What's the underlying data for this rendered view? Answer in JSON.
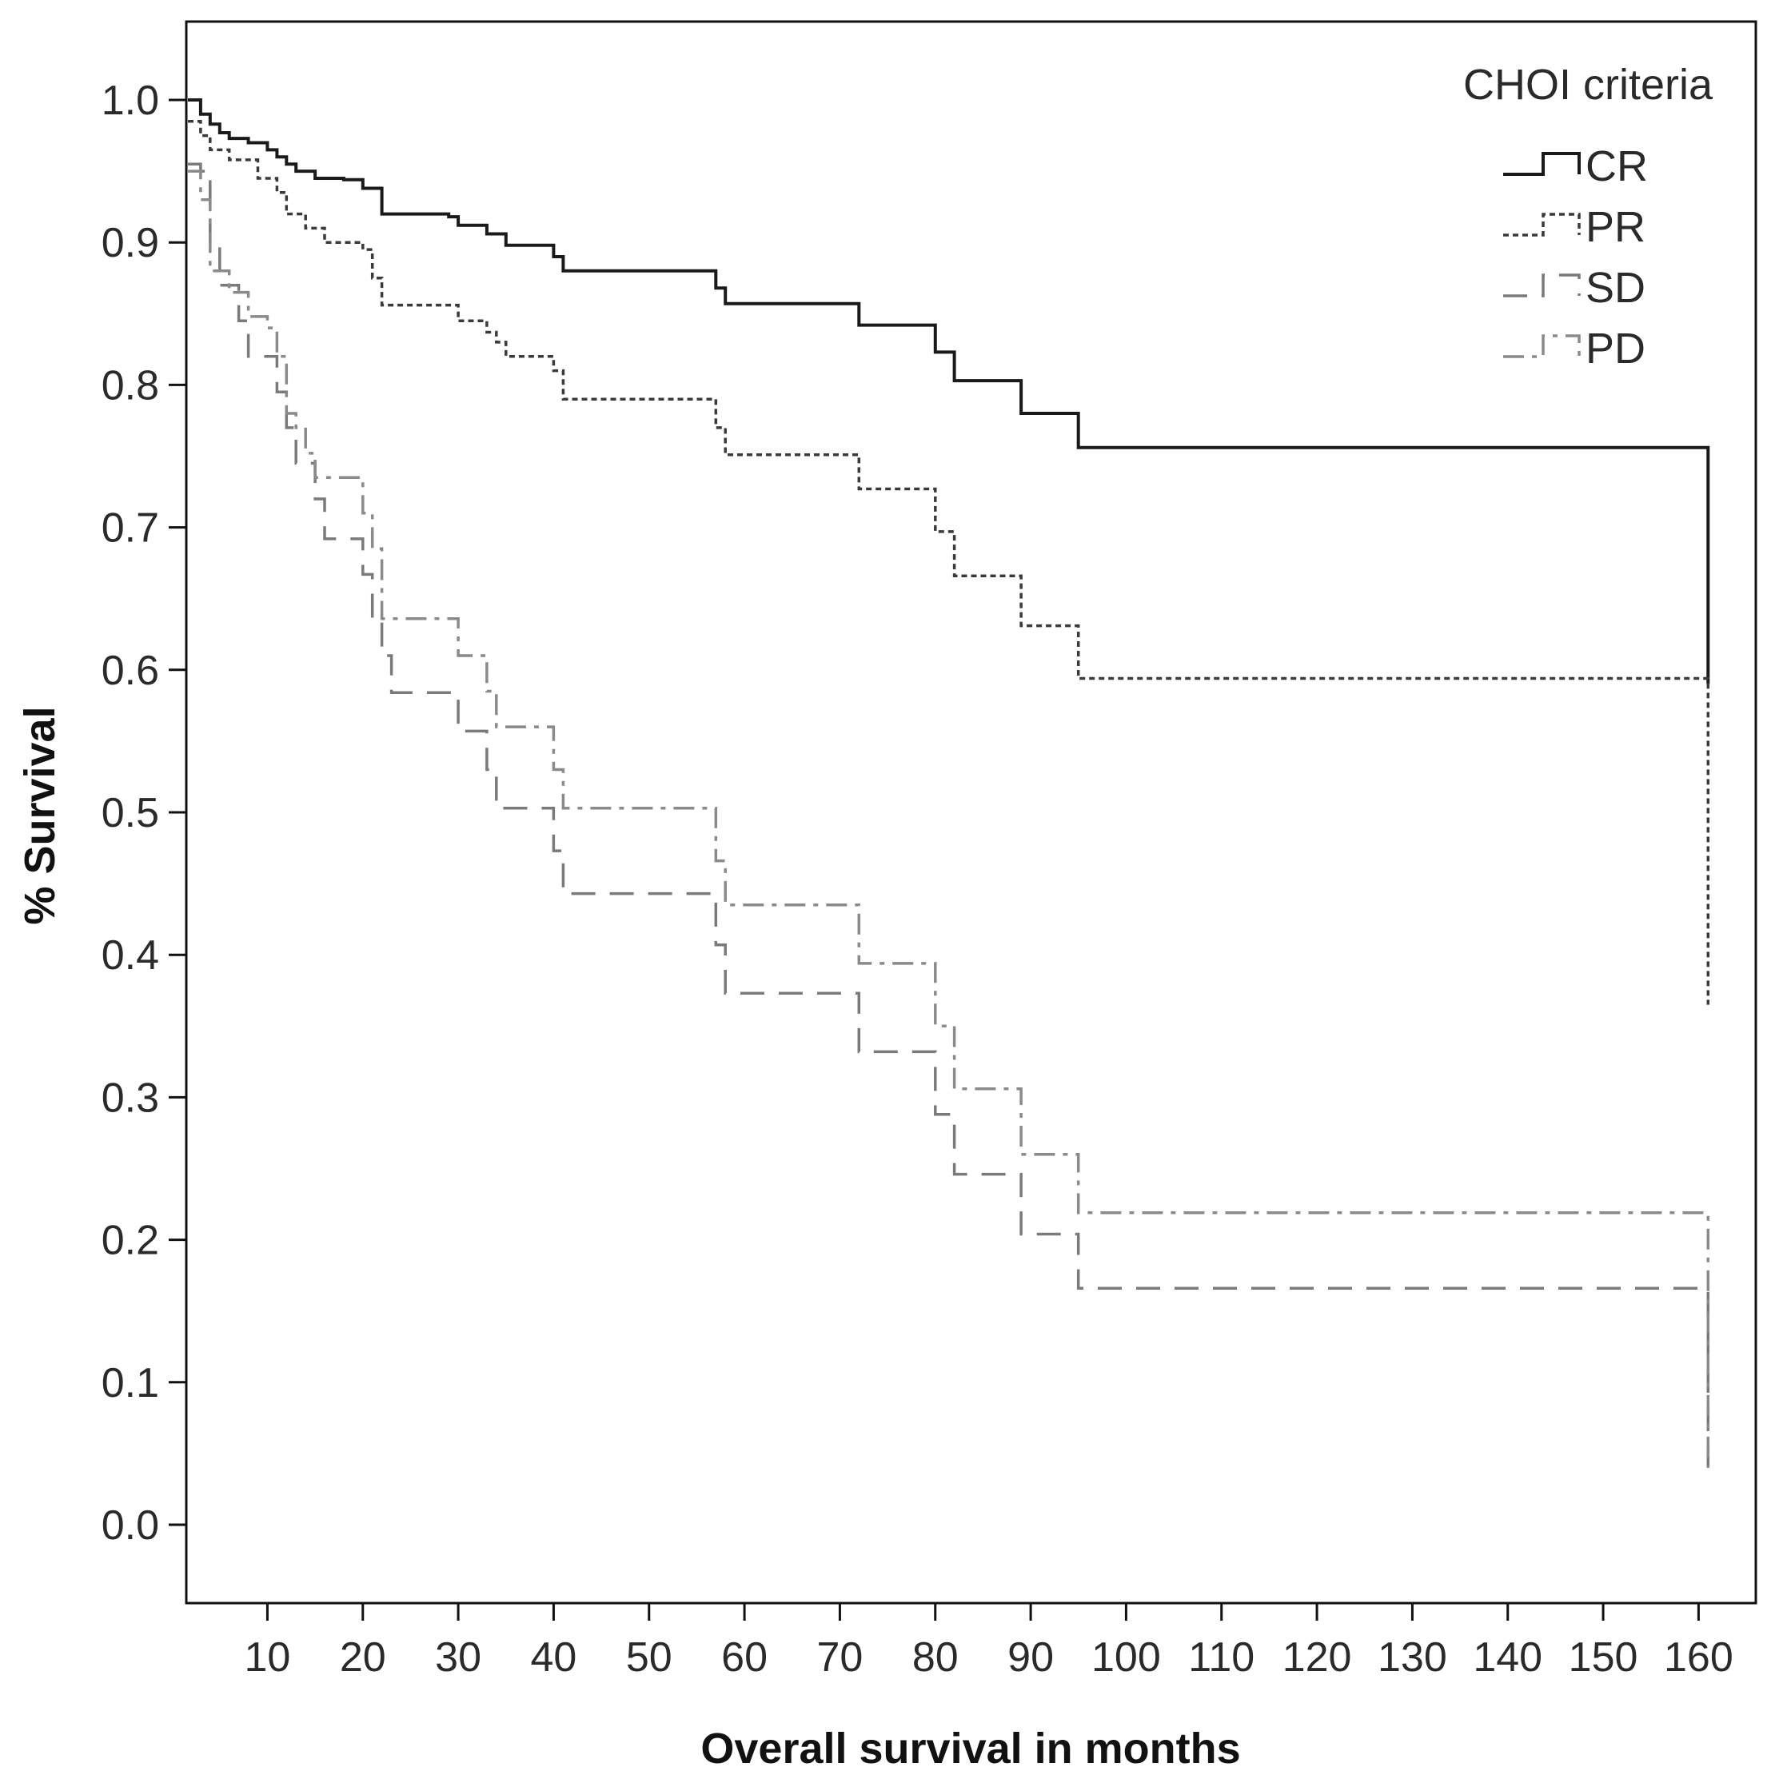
{
  "chart_data": {
    "type": "line",
    "subtype": "kaplan-meier-step",
    "xlabel": "Overall survival in months",
    "ylabel": "% Survival",
    "xlim": [
      1.5,
      166
    ],
    "ylim": [
      -0.055,
      1.055
    ],
    "x_ticks": [
      10,
      20,
      30,
      40,
      50,
      60,
      70,
      80,
      90,
      100,
      110,
      120,
      130,
      140,
      150,
      160
    ],
    "y_ticks": [
      0.0,
      0.1,
      0.2,
      0.3,
      0.4,
      0.5,
      0.6,
      0.7,
      0.8,
      0.9,
      1.0
    ],
    "y_tick_labels": [
      "0.0",
      "0.1",
      "0.2",
      "0.3",
      "0.4",
      "0.5",
      "0.6",
      "0.7",
      "0.8",
      "0.9",
      "1.0"
    ],
    "legend": {
      "title": "CHOI criteria",
      "position": "top-right"
    },
    "series": [
      {
        "name": "CR",
        "style": "solid",
        "color": "#1a1a1a",
        "points": [
          [
            0,
            1.0
          ],
          [
            3,
            0.99
          ],
          [
            4,
            0.983
          ],
          [
            5,
            0.977
          ],
          [
            6,
            0.973
          ],
          [
            8,
            0.97
          ],
          [
            10,
            0.965
          ],
          [
            11,
            0.96
          ],
          [
            12,
            0.955
          ],
          [
            13,
            0.95
          ],
          [
            15,
            0.945
          ],
          [
            18,
            0.944
          ],
          [
            20,
            0.938
          ],
          [
            22,
            0.92
          ],
          [
            25,
            0.92
          ],
          [
            29,
            0.918
          ],
          [
            30,
            0.912
          ],
          [
            33,
            0.906
          ],
          [
            35,
            0.898
          ],
          [
            38,
            0.898
          ],
          [
            40,
            0.89
          ],
          [
            41,
            0.88
          ],
          [
            56,
            0.88
          ],
          [
            57,
            0.868
          ],
          [
            58,
            0.857
          ],
          [
            71,
            0.857
          ],
          [
            72,
            0.842
          ],
          [
            79,
            0.842
          ],
          [
            80,
            0.823
          ],
          [
            82,
            0.803
          ],
          [
            88,
            0.803
          ],
          [
            89,
            0.78
          ],
          [
            94,
            0.78
          ],
          [
            95,
            0.756
          ],
          [
            161,
            0.756
          ],
          [
            161,
            0.59
          ]
        ]
      },
      {
        "name": "PR",
        "style": "dotted",
        "color": "#3a3a3a",
        "points": [
          [
            0,
            0.985
          ],
          [
            3,
            0.975
          ],
          [
            4,
            0.965
          ],
          [
            6,
            0.958
          ],
          [
            9,
            0.945
          ],
          [
            11,
            0.935
          ],
          [
            12,
            0.92
          ],
          [
            14,
            0.91
          ],
          [
            16,
            0.9
          ],
          [
            20,
            0.895
          ],
          [
            21,
            0.875
          ],
          [
            22,
            0.856
          ],
          [
            29,
            0.856
          ],
          [
            30,
            0.845
          ],
          [
            33,
            0.837
          ],
          [
            34,
            0.83
          ],
          [
            35,
            0.82
          ],
          [
            39,
            0.82
          ],
          [
            40,
            0.81
          ],
          [
            41,
            0.79
          ],
          [
            56,
            0.79
          ],
          [
            57,
            0.77
          ],
          [
            58,
            0.751
          ],
          [
            71,
            0.751
          ],
          [
            72,
            0.727
          ],
          [
            79,
            0.727
          ],
          [
            80,
            0.697
          ],
          [
            82,
            0.666
          ],
          [
            88,
            0.666
          ],
          [
            89,
            0.631
          ],
          [
            94,
            0.631
          ],
          [
            95,
            0.594
          ],
          [
            161,
            0.594
          ],
          [
            161,
            0.365
          ]
        ]
      },
      {
        "name": "SD",
        "style": "dashed",
        "color": "#7a7a7a",
        "points": [
          [
            0,
            0.955
          ],
          [
            3,
            0.95
          ],
          [
            4,
            0.9
          ],
          [
            5,
            0.87
          ],
          [
            7,
            0.845
          ],
          [
            8,
            0.82
          ],
          [
            10,
            0.82
          ],
          [
            11,
            0.795
          ],
          [
            12,
            0.77
          ],
          [
            13,
            0.745
          ],
          [
            15,
            0.72
          ],
          [
            16,
            0.692
          ],
          [
            19,
            0.692
          ],
          [
            20,
            0.667
          ],
          [
            21,
            0.636
          ],
          [
            22,
            0.61
          ],
          [
            23,
            0.584
          ],
          [
            29,
            0.584
          ],
          [
            30,
            0.557
          ],
          [
            33,
            0.53
          ],
          [
            34,
            0.503
          ],
          [
            39,
            0.503
          ],
          [
            40,
            0.473
          ],
          [
            41,
            0.443
          ],
          [
            56,
            0.443
          ],
          [
            57,
            0.407
          ],
          [
            58,
            0.373
          ],
          [
            71,
            0.373
          ],
          [
            72,
            0.332
          ],
          [
            79,
            0.332
          ],
          [
            80,
            0.288
          ],
          [
            82,
            0.246
          ],
          [
            88,
            0.246
          ],
          [
            89,
            0.204
          ],
          [
            94,
            0.204
          ],
          [
            95,
            0.166
          ],
          [
            161,
            0.166
          ],
          [
            161,
            0.04
          ]
        ]
      },
      {
        "name": "PD",
        "style": "dash-dot",
        "color": "#8a8a8a",
        "points": [
          [
            0,
            0.95
          ],
          [
            3,
            0.93
          ],
          [
            4,
            0.88
          ],
          [
            6,
            0.865
          ],
          [
            8,
            0.848
          ],
          [
            10,
            0.84
          ],
          [
            11,
            0.82
          ],
          [
            12,
            0.78
          ],
          [
            13,
            0.77
          ],
          [
            14,
            0.752
          ],
          [
            15,
            0.735
          ],
          [
            18,
            0.735
          ],
          [
            20,
            0.71
          ],
          [
            21,
            0.685
          ],
          [
            22,
            0.636
          ],
          [
            29,
            0.636
          ],
          [
            30,
            0.61
          ],
          [
            33,
            0.585
          ],
          [
            34,
            0.56
          ],
          [
            39,
            0.56
          ],
          [
            40,
            0.53
          ],
          [
            41,
            0.503
          ],
          [
            56,
            0.503
          ],
          [
            57,
            0.466
          ],
          [
            58,
            0.435
          ],
          [
            71,
            0.435
          ],
          [
            72,
            0.394
          ],
          [
            79,
            0.394
          ],
          [
            80,
            0.35
          ],
          [
            82,
            0.306
          ],
          [
            88,
            0.306
          ],
          [
            89,
            0.26
          ],
          [
            94,
            0.26
          ],
          [
            95,
            0.219
          ],
          [
            161,
            0.219
          ],
          [
            161,
            0.04
          ]
        ]
      }
    ]
  }
}
